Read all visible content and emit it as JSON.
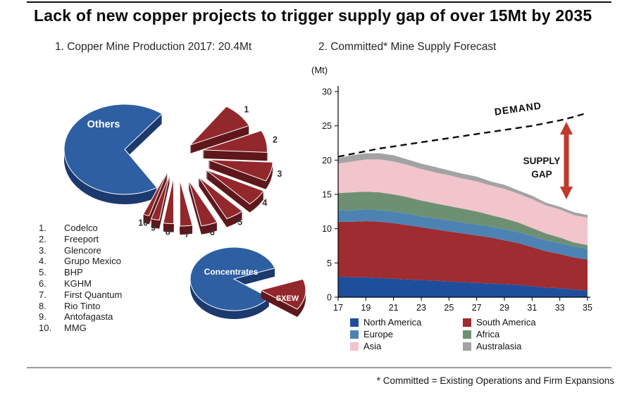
{
  "page": {
    "title": "Lack of new copper projects to trigger supply gap of over 15Mt by 2035",
    "footnote": "* Committed = Existing Operations and Firm Expansions"
  },
  "left_panel": {
    "heading": "1. Copper Mine Production 2017: 20.4Mt",
    "producers": [
      {
        "rank": "1.",
        "name": "Codelco"
      },
      {
        "rank": "2.",
        "name": "Freeport"
      },
      {
        "rank": "3.",
        "name": "Glencore"
      },
      {
        "rank": "4.",
        "name": "Grupo Mexico"
      },
      {
        "rank": "5.",
        "name": "BHP"
      },
      {
        "rank": "6.",
        "name": "KGHM"
      },
      {
        "rank": "7.",
        "name": "First Quantum"
      },
      {
        "rank": "8.",
        "name": "Rio Tinto"
      },
      {
        "rank": "9.",
        "name": "Antofagasta"
      },
      {
        "rank": "10.",
        "name": "MMG"
      }
    ]
  },
  "right_panel": {
    "heading": "2. Committed* Mine Supply Forecast",
    "y_unit": "(Mt)"
  },
  "chart_data": [
    {
      "type": "pie",
      "title": "Copper Mine Production 2017: 20.4Mt",
      "units": "% share of 20.4Mt (estimated from slice sizes)",
      "slices": [
        {
          "label": "Others",
          "value": 54.5,
          "color": "#2e5fa3",
          "side_color": "#1c3a6e"
        },
        {
          "label": "1",
          "name": "Codelco",
          "value": 8.5,
          "color": "#93282c",
          "side_color": "#5e181c"
        },
        {
          "label": "2",
          "name": "Freeport",
          "value": 7.5,
          "color": "#93282c",
          "side_color": "#5e181c"
        },
        {
          "label": "3",
          "name": "Glencore",
          "value": 6.5,
          "color": "#93282c",
          "side_color": "#5e181c"
        },
        {
          "label": "4",
          "name": "Grupo Mexico",
          "value": 5.5,
          "color": "#93282c",
          "side_color": "#5e181c"
        },
        {
          "label": "5",
          "name": "BHP",
          "value": 4.5,
          "color": "#93282c",
          "side_color": "#5e181c"
        },
        {
          "label": "6",
          "name": "KGHM",
          "value": 4.0,
          "color": "#93282c",
          "side_color": "#5e181c"
        },
        {
          "label": "7",
          "name": "First Quantum",
          "value": 3.0,
          "color": "#93282c",
          "side_color": "#5e181c"
        },
        {
          "label": "8",
          "name": "Rio Tinto",
          "value": 2.5,
          "color": "#93282c",
          "side_color": "#5e181c"
        },
        {
          "label": "9",
          "name": "Antofagasta",
          "value": 2.0,
          "color": "#93282c",
          "side_color": "#5e181c"
        },
        {
          "label": "10",
          "name": "MMG",
          "value": 1.5,
          "color": "#93282c",
          "side_color": "#5e181c"
        }
      ]
    },
    {
      "type": "pie",
      "title": "Concentrates vs SXEW split",
      "units": "% share (estimated)",
      "slices": [
        {
          "label": "Concentrates",
          "value": 85,
          "color": "#2e5fa3",
          "side_color": "#1c3a6e"
        },
        {
          "label": "SXEW",
          "value": 15,
          "color": "#93282c",
          "side_color": "#5e181c"
        }
      ]
    },
    {
      "type": "area",
      "title": "2. Committed* Mine Supply Forecast",
      "ylabel": "(Mt)",
      "ylim": [
        0,
        30
      ],
      "yticks": [
        0,
        5,
        10,
        15,
        20,
        25,
        30
      ],
      "x": [
        17,
        18,
        19,
        20,
        21,
        22,
        23,
        24,
        25,
        26,
        27,
        28,
        29,
        30,
        31,
        32,
        33,
        34,
        35
      ],
      "xticks": [
        17,
        19,
        21,
        23,
        25,
        27,
        29,
        31,
        33,
        35
      ],
      "stacked": true,
      "grid": false,
      "legend_position": "bottom",
      "series": [
        {
          "name": "North America",
          "color": "#1e4f9c",
          "values": [
            3.0,
            2.9,
            2.9,
            2.8,
            2.7,
            2.6,
            2.5,
            2.4,
            2.3,
            2.2,
            2.1,
            2.0,
            1.9,
            1.8,
            1.6,
            1.4,
            1.3,
            1.1,
            1.0
          ]
        },
        {
          "name": "South America",
          "color": "#9e2c30",
          "values": [
            8.0,
            8.1,
            8.2,
            8.2,
            8.1,
            7.9,
            7.7,
            7.5,
            7.3,
            7.1,
            6.9,
            6.7,
            6.4,
            6.1,
            5.7,
            5.3,
            5.0,
            4.7,
            4.5
          ]
        },
        {
          "name": "Europe",
          "color": "#4d83b3",
          "values": [
            1.7,
            1.7,
            1.7,
            1.7,
            1.7,
            1.7,
            1.6,
            1.6,
            1.6,
            1.6,
            1.6,
            1.6,
            1.6,
            1.6,
            1.6,
            1.6,
            1.6,
            1.6,
            1.6
          ]
        },
        {
          "name": "Africa",
          "color": "#6e9072",
          "values": [
            2.5,
            2.6,
            2.6,
            2.6,
            2.5,
            2.4,
            2.3,
            2.2,
            2.1,
            2.0,
            1.9,
            1.7,
            1.6,
            1.4,
            1.2,
            1.0,
            0.8,
            0.6,
            0.5
          ]
        },
        {
          "name": "Asia",
          "color": "#f2c4cb",
          "values": [
            4.3,
            4.5,
            4.7,
            4.8,
            4.8,
            4.7,
            4.6,
            4.5,
            4.5,
            4.4,
            4.4,
            4.3,
            4.3,
            4.2,
            4.2,
            4.1,
            4.1,
            4.0,
            4.0
          ]
        },
        {
          "name": "Australasia",
          "color": "#a3a3a3",
          "values": [
            0.8,
            0.9,
            0.9,
            0.9,
            0.9,
            0.8,
            0.8,
            0.8,
            0.7,
            0.7,
            0.7,
            0.6,
            0.6,
            0.5,
            0.5,
            0.4,
            0.4,
            0.4,
            0.4
          ]
        }
      ],
      "demand": {
        "name": "DEMAND",
        "style": "dashed",
        "color": "#0d0d0d",
        "values": [
          20.5,
          20.9,
          21.3,
          21.7,
          22.0,
          22.3,
          22.6,
          22.9,
          23.2,
          23.5,
          23.8,
          24.1,
          24.4,
          24.7,
          25.0,
          25.4,
          25.8,
          26.3,
          26.9
        ]
      },
      "annotations": {
        "demand_label": "DEMAND",
        "gap_label_line1": "SUPPLY",
        "gap_label_line2": "GAP",
        "arrow_color": "#c0392b"
      }
    }
  ]
}
